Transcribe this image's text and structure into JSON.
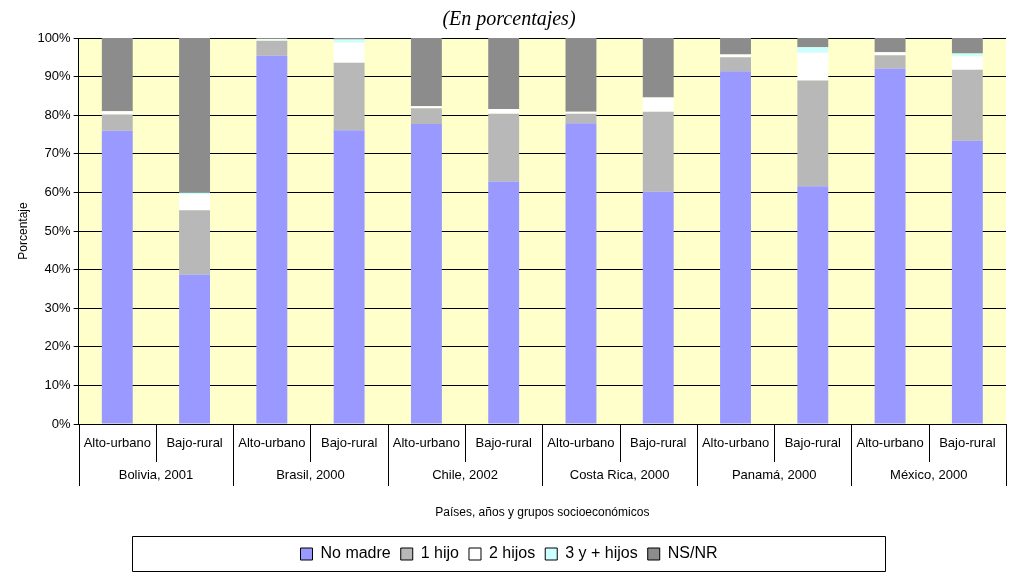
{
  "chart_data": {
    "type": "bar",
    "stacked": true,
    "title": "(En porcentajes)",
    "xlabel": "Países, años y grupos socioeconómicos",
    "ylabel": "Porcentaje",
    "categories": [
      "Alto-urbano",
      "Bajo-rural",
      "Alto-urbano",
      "Bajo-rural",
      "Alto-urbano",
      "Bajo-rural",
      "Alto-urbano",
      "Bajo-rural",
      "Alto-urbano",
      "Bajo-rural",
      "Alto-urbano",
      "Bajo-rural"
    ],
    "annotations": [
      "Bolivia, 2001",
      "Brasil, 2000",
      "Chile, 2002",
      "Costa Rica, 2000",
      "Panamá, 2000",
      "México, 2000"
    ],
    "series": [
      {
        "name": "No madre",
        "color": "#9999ff",
        "values": [
          76,
          38.7,
          95.4,
          76.1,
          77.7,
          62.8,
          77.9,
          60.2,
          91.4,
          61.6,
          92.1,
          73.4
        ]
      },
      {
        "name": "1 hijo",
        "color": "#b8b8b8",
        "values": [
          4.2,
          16.7,
          3.9,
          17.5,
          4.1,
          17.6,
          2.5,
          20.7,
          3.6,
          27.4,
          3.4,
          18.4
        ]
      },
      {
        "name": "2 hijos",
        "color": "#ffffff",
        "values": [
          0.8,
          4.1,
          0.3,
          5.2,
          0.5,
          1.2,
          0.5,
          3.7,
          0.7,
          7.2,
          0.8,
          3.4
        ]
      },
      {
        "name": "3 y + hijos",
        "color": "#ccffff",
        "values": [
          0,
          0.5,
          0.2,
          0.8,
          0,
          null,
          0,
          null,
          null,
          1.4,
          null,
          0.8
        ]
      },
      {
        "name": "NS/NR",
        "color": "#8c8c8c",
        "values": [
          19,
          40,
          0.2,
          0.4,
          17.7,
          18.4,
          19.1,
          15.4,
          4.3,
          2.4,
          3.7,
          4
        ]
      }
    ],
    "ylim": [
      0,
      100
    ],
    "yticks": [
      {
        "value": 0,
        "label": "0%"
      },
      {
        "value": 10,
        "label": "10%"
      },
      {
        "value": 20,
        "label": "20%"
      },
      {
        "value": 30,
        "label": "30%"
      },
      {
        "value": 40,
        "label": "40%"
      },
      {
        "value": 50,
        "label": "50%"
      },
      {
        "value": 60,
        "label": "60%"
      },
      {
        "value": 70,
        "label": "70%"
      },
      {
        "value": 80,
        "label": "80%"
      },
      {
        "value": 90,
        "label": "90%"
      },
      {
        "value": 100,
        "label": "100%"
      }
    ],
    "grid": "y",
    "legend": "bottom"
  }
}
